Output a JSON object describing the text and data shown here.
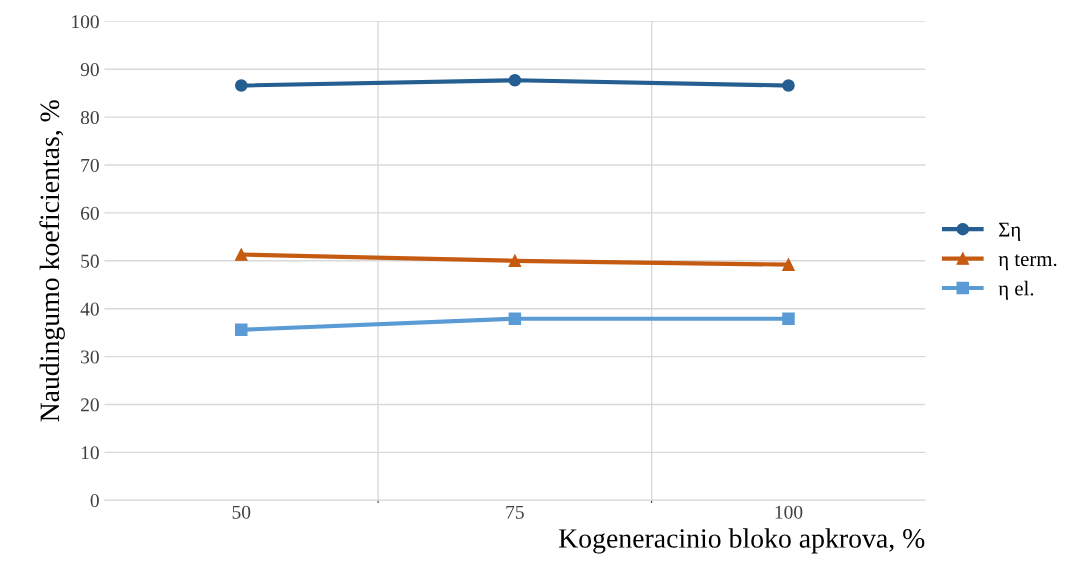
{
  "chart_data": {
    "type": "line",
    "xlabel": "Kogeneracinio bloko apkrova, %",
    "ylabel": "Naudingumo koeficientas, %",
    "categories": [
      "50",
      "75",
      "100"
    ],
    "series": [
      {
        "name": "Ση",
        "color": "#255e91",
        "marker": "circle",
        "values": [
          86.6,
          87.7,
          86.6
        ]
      },
      {
        "name": "η term.",
        "color": "#c55a11",
        "marker": "triangle",
        "values": [
          51.3,
          50.0,
          49.2
        ]
      },
      {
        "name": "η el.",
        "color": "#5b9bd5",
        "marker": "square",
        "values": [
          35.6,
          37.9,
          37.9
        ]
      }
    ],
    "ylim": [
      0,
      100
    ],
    "yticks": [
      0,
      10,
      20,
      30,
      40,
      50,
      60,
      70,
      80,
      90,
      100
    ],
    "grid": true,
    "legend": "right",
    "line_style": "solid"
  }
}
